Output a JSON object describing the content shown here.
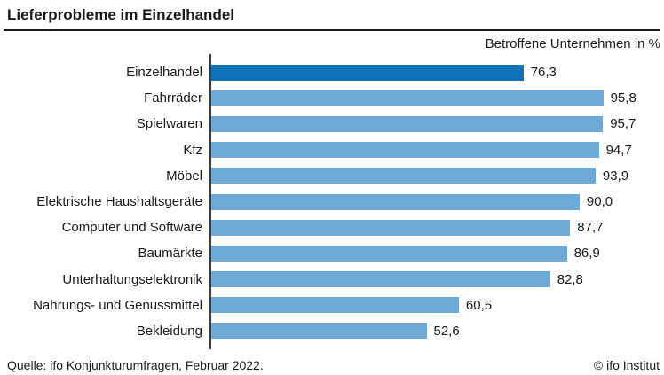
{
  "header": {
    "title": "Lieferprobleme im Einzelhandel",
    "subtitle": "Betroffene Unternehmen in %"
  },
  "footer": {
    "source": "Quelle: ifo Konjunkturumfragen, Februar 2022.",
    "copyright": "© ifo Institut"
  },
  "colors": {
    "bar_default": "#6fa9d6",
    "bar_highlight": "#0e72b8",
    "text": "#1a1a1a",
    "axis": "#3d3d3d"
  },
  "chart_data": {
    "type": "bar",
    "orientation": "horizontal",
    "title": "Lieferprobleme im Einzelhandel",
    "subtitle": "Betroffene Unternehmen in %",
    "unit": "%",
    "xlim": [
      0,
      100
    ],
    "grid": false,
    "legend": false,
    "highlight_index": 0,
    "categories": [
      "Einzelhandel",
      "Fahrräder",
      "Spielwaren",
      "Kfz",
      "Möbel",
      "Elektrische Haushaltsgeräte",
      "Computer und Software",
      "Baumärkte",
      "Unterhaltungselektronik",
      "Nahrungs- und Genussmittel",
      "Bekleidung"
    ],
    "values": [
      76.3,
      95.8,
      95.7,
      94.7,
      93.9,
      90.0,
      87.7,
      86.9,
      82.8,
      60.5,
      52.6
    ],
    "value_labels": [
      "76,3",
      "95,8",
      "95,7",
      "94,7",
      "93,9",
      "90,0",
      "87,7",
      "86,9",
      "82,8",
      "60,5",
      "52,6"
    ]
  }
}
